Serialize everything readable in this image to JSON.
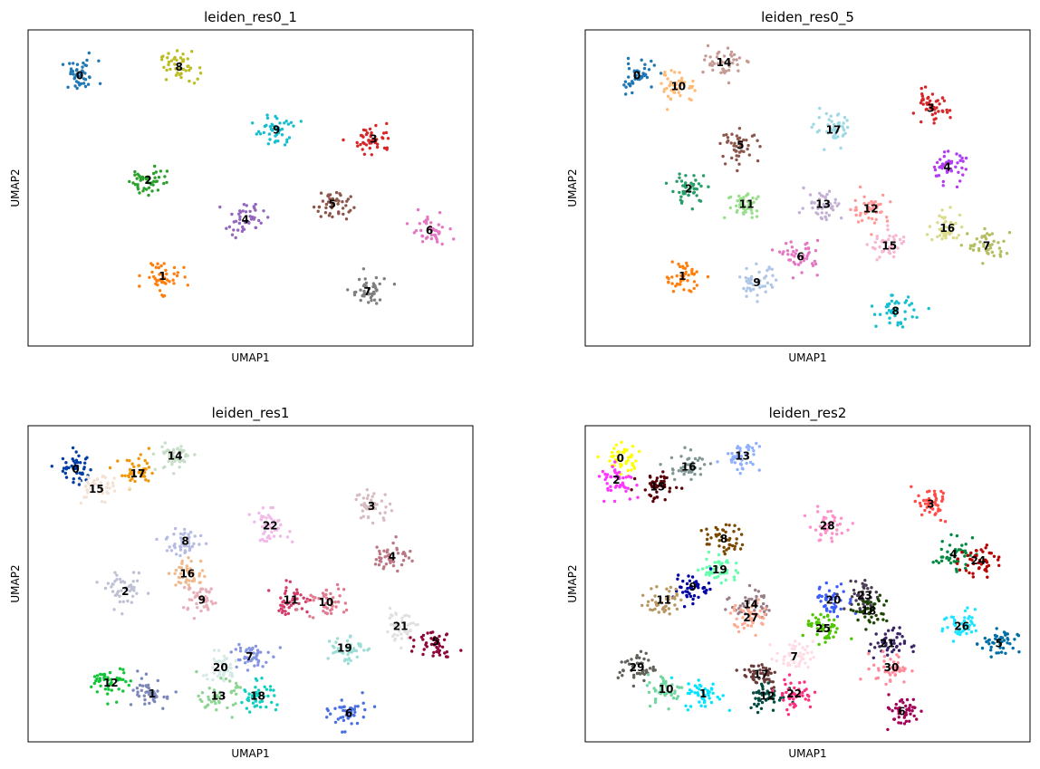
{
  "chart_data": [
    {
      "type": "scatter",
      "title": "leiden_res0_1",
      "xlabel": "UMAP1",
      "ylabel": "UMAP2",
      "ticks": false,
      "grid": false,
      "clusters": [
        {
          "label": "0",
          "color": "#1f77b4",
          "center": [
            -11.0,
            8.4
          ]
        },
        {
          "label": "8",
          "color": "#bcbd22",
          "center": [
            -6.2,
            8.8
          ]
        },
        {
          "label": "9",
          "color": "#17becf",
          "center": [
            -1.5,
            5.9
          ]
        },
        {
          "label": "3",
          "color": "#d62728",
          "center": [
            3.2,
            5.5
          ]
        },
        {
          "label": "2",
          "color": "#2ca02c",
          "center": [
            -7.7,
            3.6
          ]
        },
        {
          "label": "5",
          "color": "#8c564b",
          "center": [
            1.2,
            2.5
          ]
        },
        {
          "label": "4",
          "color": "#9467bd",
          "center": [
            -3.0,
            1.8
          ]
        },
        {
          "label": "6",
          "color": "#e377c2",
          "center": [
            5.9,
            1.3
          ]
        },
        {
          "label": "1",
          "color": "#ff7f0e",
          "center": [
            -7.0,
            -0.8
          ]
        },
        {
          "label": "7",
          "color": "#7f7f7f",
          "center": [
            2.9,
            -1.5
          ]
        }
      ]
    },
    {
      "type": "scatter",
      "title": "leiden_res0_5",
      "xlabel": "UMAP1",
      "ylabel": "UMAP2",
      "ticks": false,
      "grid": false,
      "clusters": [
        {
          "label": "0",
          "color": "#1f77b4",
          "center": [
            -11.0,
            8.4
          ]
        },
        {
          "label": "14",
          "color": "#c49c94",
          "center": [
            -6.8,
            9.0
          ]
        },
        {
          "label": "10",
          "color": "#ffbb78",
          "center": [
            -9.0,
            7.9
          ]
        },
        {
          "label": "17",
          "color": "#9edae5",
          "center": [
            -1.5,
            5.9
          ]
        },
        {
          "label": "3",
          "color": "#d62728",
          "center": [
            3.2,
            6.9
          ]
        },
        {
          "label": "4",
          "color": "#b13cf2",
          "center": [
            4.0,
            4.2
          ]
        },
        {
          "label": "5",
          "color": "#8c564b",
          "center": [
            -6.0,
            5.2
          ]
        },
        {
          "label": "2",
          "color": "#279e68",
          "center": [
            -8.5,
            3.2
          ]
        },
        {
          "label": "11",
          "color": "#98df8a",
          "center": [
            -5.7,
            2.5
          ]
        },
        {
          "label": "13",
          "color": "#c5b0d5",
          "center": [
            -2.0,
            2.5
          ]
        },
        {
          "label": "12",
          "color": "#ff9896",
          "center": [
            0.3,
            2.3
          ]
        },
        {
          "label": "16",
          "color": "#dbdb8d",
          "center": [
            4.0,
            1.4
          ]
        },
        {
          "label": "7",
          "color": "#b5bd61",
          "center": [
            5.9,
            0.6
          ]
        },
        {
          "label": "15",
          "color": "#f7b6d2",
          "center": [
            1.2,
            0.6
          ]
        },
        {
          "label": "6",
          "color": "#e377c2",
          "center": [
            -3.1,
            0.1
          ]
        },
        {
          "label": "1",
          "color": "#ff7f0e",
          "center": [
            -8.8,
            -0.8
          ]
        },
        {
          "label": "9",
          "color": "#aec7e8",
          "center": [
            -5.2,
            -1.1
          ]
        },
        {
          "label": "8",
          "color": "#17becf",
          "center": [
            1.5,
            -2.4
          ]
        }
      ]
    },
    {
      "type": "scatter",
      "title": "leiden_res1",
      "xlabel": "UMAP1",
      "ylabel": "UMAP2",
      "ticks": false,
      "grid": false,
      "clusters": [
        {
          "label": "0",
          "color": "#023fa5",
          "center": [
            -11.2,
            8.5
          ]
        },
        {
          "label": "17",
          "color": "#ef9708",
          "center": [
            -8.2,
            8.3
          ]
        },
        {
          "label": "14",
          "color": "#c6dec7",
          "center": [
            -6.4,
            9.1
          ]
        },
        {
          "label": "15",
          "color": "#f3e1d4",
          "center": [
            -10.2,
            7.6
          ]
        },
        {
          "label": "22",
          "color": "#f0b9e8",
          "center": [
            -1.8,
            5.9
          ]
        },
        {
          "label": "3",
          "color": "#d6bcc0",
          "center": [
            3.1,
            6.8
          ]
        },
        {
          "label": "8",
          "color": "#b5bbe3",
          "center": [
            -5.9,
            5.2
          ]
        },
        {
          "label": "4",
          "color": "#bb7784",
          "center": [
            4.1,
            4.5
          ]
        },
        {
          "label": "16",
          "color": "#f0b98d",
          "center": [
            -5.8,
            3.7
          ]
        },
        {
          "label": "2",
          "color": "#bec1d4",
          "center": [
            -8.8,
            2.9
          ]
        },
        {
          "label": "9",
          "color": "#e6afb9",
          "center": [
            -5.1,
            2.5
          ]
        },
        {
          "label": "11",
          "color": "#d33f6a",
          "center": [
            -0.8,
            2.5
          ]
        },
        {
          "label": "10",
          "color": "#e07b91",
          "center": [
            0.9,
            2.4
          ]
        },
        {
          "label": "21",
          "color": "#e0e0e0",
          "center": [
            4.5,
            1.3
          ]
        },
        {
          "label": "5",
          "color": "#8e063b",
          "center": [
            6.2,
            0.6
          ]
        },
        {
          "label": "19",
          "color": "#9cded6",
          "center": [
            1.8,
            0.3
          ]
        },
        {
          "label": "7",
          "color": "#8595e1",
          "center": [
            -2.8,
            -0.1
          ]
        },
        {
          "label": "20",
          "color": "#d5eae7",
          "center": [
            -4.2,
            -0.6
          ]
        },
        {
          "label": "12",
          "color": "#11c638",
          "center": [
            -9.5,
            -1.3
          ]
        },
        {
          "label": "1",
          "color": "#7d87b9",
          "center": [
            -7.5,
            -1.8
          ]
        },
        {
          "label": "13",
          "color": "#8dd593",
          "center": [
            -4.3,
            -1.9
          ]
        },
        {
          "label": "18",
          "color": "#0fcfc0",
          "center": [
            -2.4,
            -1.9
          ]
        },
        {
          "label": "6",
          "color": "#4a6fe3",
          "center": [
            2.0,
            -2.7
          ]
        }
      ]
    },
    {
      "type": "scatter",
      "title": "leiden_res2",
      "xlabel": "UMAP1",
      "ylabel": "UMAP2",
      "ticks": false,
      "grid": false,
      "clusters": [
        {
          "label": "0",
          "color": "#ffff00",
          "center": [
            -11.8,
            9.0
          ]
        },
        {
          "label": "16",
          "color": "#809693",
          "center": [
            -8.5,
            8.6
          ]
        },
        {
          "label": "13",
          "color": "#8fb0ff",
          "center": [
            -5.9,
            9.1
          ]
        },
        {
          "label": "2",
          "color": "#ff34ff",
          "center": [
            -12.0,
            8.0
          ]
        },
        {
          "label": "15",
          "color": "#5a0007",
          "center": [
            -10.0,
            7.7
          ]
        },
        {
          "label": "28",
          "color": "#ff90c9",
          "center": [
            -1.8,
            5.9
          ]
        },
        {
          "label": "3",
          "color": "#ff4a46",
          "center": [
            3.2,
            6.9
          ]
        },
        {
          "label": "8",
          "color": "#7a4900",
          "center": [
            -6.8,
            5.3
          ]
        },
        {
          "label": "4",
          "color": "#008941",
          "center": [
            4.3,
            4.6
          ]
        },
        {
          "label": "24",
          "color": "#b90000",
          "center": [
            5.5,
            4.3
          ]
        },
        {
          "label": "19",
          "color": "#63ffac",
          "center": [
            -7.0,
            3.9
          ]
        },
        {
          "label": "9",
          "color": "#0000a6",
          "center": [
            -8.3,
            3.1
          ]
        },
        {
          "label": "11",
          "color": "#b79762",
          "center": [
            -9.7,
            2.5
          ]
        },
        {
          "label": "14",
          "color": "#997d87",
          "center": [
            -5.5,
            2.3
          ]
        },
        {
          "label": "20",
          "color": "#3b5dff",
          "center": [
            -1.5,
            2.5
          ]
        },
        {
          "label": "23",
          "color": "#4a3b53",
          "center": [
            0.0,
            2.7
          ]
        },
        {
          "label": "18",
          "color": "#1b4400",
          "center": [
            0.2,
            2.0
          ]
        },
        {
          "label": "27",
          "color": "#ffaa92",
          "center": [
            -5.5,
            1.7
          ]
        },
        {
          "label": "25",
          "color": "#4fc601",
          "center": [
            -2.0,
            1.2
          ]
        },
        {
          "label": "26",
          "color": "#1ce6ff",
          "center": [
            4.7,
            1.3
          ]
        },
        {
          "label": "5",
          "color": "#006fa6",
          "center": [
            6.5,
            0.5
          ]
        },
        {
          "label": "21",
          "color": "#3a2465",
          "center": [
            1.1,
            0.5
          ]
        },
        {
          "label": "7",
          "color": "#ffdbe5",
          "center": [
            -3.4,
            -0.1
          ]
        },
        {
          "label": "30",
          "color": "#ff8a9a",
          "center": [
            1.3,
            -0.6
          ]
        },
        {
          "label": "29",
          "color": "#61615a",
          "center": [
            -11.0,
            -0.6
          ]
        },
        {
          "label": "17",
          "color": "#6b3a3a",
          "center": [
            -5.0,
            -0.9
          ]
        },
        {
          "label": "10",
          "color": "#72d6a0",
          "center": [
            -9.6,
            -1.6
          ]
        },
        {
          "label": "1",
          "color": "#00e5ff",
          "center": [
            -7.8,
            -1.8
          ]
        },
        {
          "label": "12",
          "color": "#004d43",
          "center": [
            -4.7,
            -1.9
          ]
        },
        {
          "label": "22",
          "color": "#ff2f80",
          "center": [
            -3.4,
            -1.8
          ]
        },
        {
          "label": "6",
          "color": "#a30059",
          "center": [
            1.8,
            -2.6
          ]
        }
      ]
    }
  ]
}
